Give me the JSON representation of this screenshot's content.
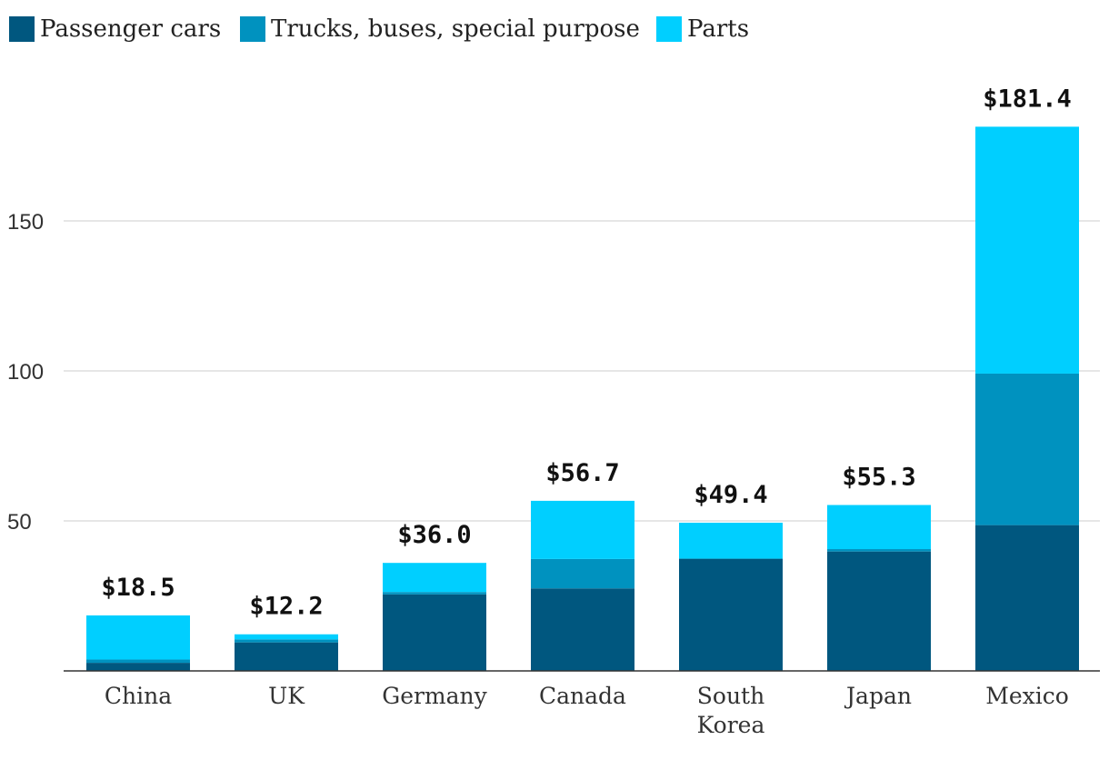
{
  "chart_data": {
    "type": "bar",
    "stacked": true,
    "title": "",
    "xlabel": "",
    "ylabel": "",
    "ylim": [
      0,
      200
    ],
    "yticks": [
      50,
      100,
      150
    ],
    "grid": true,
    "legend_position": "top-left",
    "categories": [
      "China",
      "UK",
      "Germany",
      "Canada",
      "South Korea",
      "Japan",
      "Mexico"
    ],
    "category_lines": [
      [
        "China"
      ],
      [
        "UK"
      ],
      [
        "Germany"
      ],
      [
        "Canada"
      ],
      [
        "South",
        "Korea"
      ],
      [
        "Japan"
      ],
      [
        "Mexico"
      ]
    ],
    "series": [
      {
        "name": "Passenger cars",
        "color": "#00577f",
        "values": [
          2.7,
          9.5,
          25.5,
          27.5,
          37.4,
          39.8,
          48.6
        ]
      },
      {
        "name": "Trucks, buses, special purpose",
        "color": "#0092bf",
        "values": [
          1.1,
          1.0,
          0.8,
          9.8,
          0.0,
          0.8,
          50.5
        ]
      },
      {
        "name": "Parts",
        "color": "#00cfff",
        "values": [
          14.7,
          1.7,
          9.7,
          19.4,
          12.0,
          14.7,
          82.3
        ]
      }
    ],
    "totals": [
      18.5,
      12.2,
      36.0,
      56.7,
      49.4,
      55.3,
      181.4
    ],
    "total_labels": [
      "$18.5",
      "$12.2",
      "$36.0",
      "$56.7",
      "$49.4",
      "$55.3",
      "$181.4"
    ]
  }
}
